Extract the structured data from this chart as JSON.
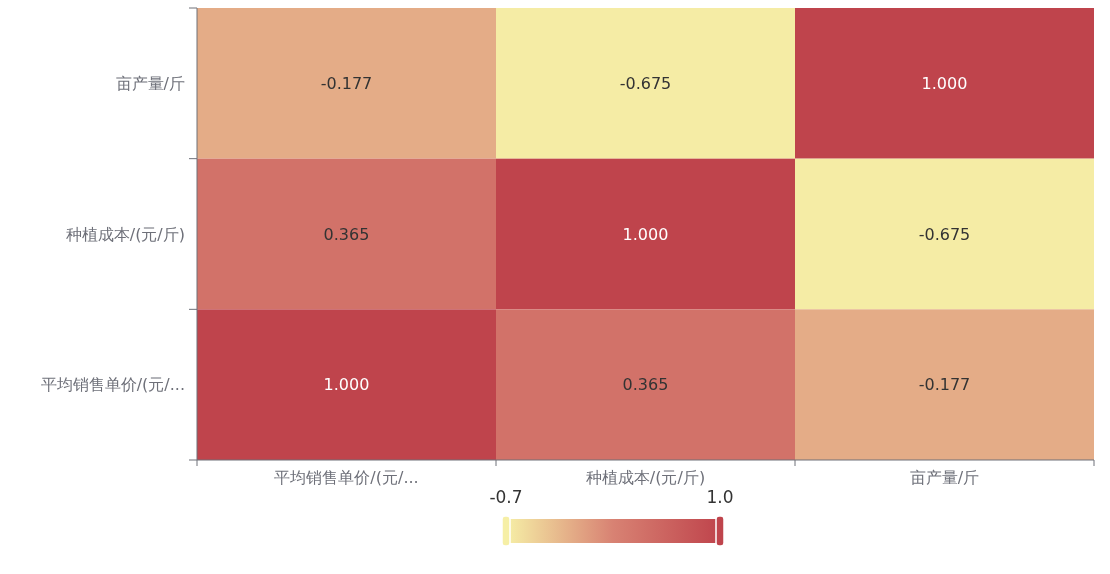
{
  "chart_data": {
    "type": "heatmap",
    "categories": [
      "平均销售单价/(元/...",
      "种植成本/(元/斤)",
      "亩产量/斤"
    ],
    "y_categories": [
      "亩产量/斤",
      "种植成本/(元/斤)",
      "平均销售单价/(元/..."
    ],
    "cells": [
      [
        -0.177,
        -0.675,
        1.0
      ],
      [
        0.365,
        1.0,
        -0.675
      ],
      [
        1.0,
        0.365,
        -0.177
      ]
    ],
    "cell_labels": [
      [
        "-0.177",
        "-0.675",
        "1.000"
      ],
      [
        "0.365",
        "1.000",
        "-0.675"
      ],
      [
        "1.000",
        "0.365",
        "-0.177"
      ]
    ],
    "clim": [
      -0.7,
      1.0
    ],
    "cticks": [
      -0.7,
      {
        "value": 1.0,
        "label": "1.0"
      }
    ]
  }
}
